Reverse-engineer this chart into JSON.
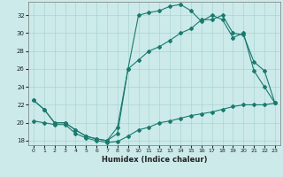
{
  "xlabel": "Humidex (Indice chaleur)",
  "xlim": [
    -0.5,
    23.5
  ],
  "ylim": [
    17.5,
    33.5
  ],
  "xticks": [
    0,
    1,
    2,
    3,
    4,
    5,
    6,
    7,
    8,
    9,
    10,
    11,
    12,
    13,
    14,
    15,
    16,
    17,
    18,
    19,
    20,
    21,
    22,
    23
  ],
  "yticks": [
    18,
    20,
    22,
    24,
    26,
    28,
    30,
    32
  ],
  "bg_color": "#cceaea",
  "line_color": "#1a7a6e",
  "grid_color": "#aad4d4",
  "line1_x": [
    0,
    1,
    2,
    3,
    4,
    5,
    6,
    7,
    8,
    9,
    10,
    11,
    12,
    13,
    14,
    15,
    16,
    17,
    18,
    19,
    20,
    21,
    22,
    23
  ],
  "line1_y": [
    20.2,
    20.0,
    19.8,
    19.8,
    18.8,
    18.3,
    18.0,
    17.8,
    17.9,
    18.5,
    19.2,
    19.5,
    20.0,
    20.2,
    20.5,
    20.8,
    21.0,
    21.2,
    21.5,
    21.8,
    22.0,
    22.0,
    22.0,
    22.2
  ],
  "line2_x": [
    0,
    1,
    2,
    3,
    4,
    5,
    6,
    7,
    8,
    9,
    10,
    11,
    12,
    13,
    14,
    15,
    16,
    17,
    18,
    19,
    20,
    21,
    22,
    23
  ],
  "line2_y": [
    22.5,
    21.5,
    20.0,
    20.0,
    19.2,
    18.5,
    18.2,
    18.0,
    19.5,
    26.0,
    27.0,
    28.0,
    28.5,
    29.2,
    30.0,
    30.5,
    31.5,
    31.5,
    32.0,
    30.0,
    29.8,
    26.8,
    25.8,
    22.2
  ],
  "line3_x": [
    0,
    1,
    2,
    3,
    4,
    5,
    6,
    7,
    8,
    9,
    10,
    11,
    12,
    13,
    14,
    15,
    16,
    17,
    18,
    19,
    20,
    21,
    22,
    23
  ],
  "line3_y": [
    22.5,
    21.5,
    20.0,
    20.0,
    19.2,
    18.5,
    18.2,
    18.0,
    18.8,
    26.0,
    32.0,
    32.3,
    32.5,
    33.0,
    33.2,
    32.5,
    31.3,
    32.0,
    31.5,
    29.5,
    30.0,
    25.8,
    24.0,
    22.2
  ]
}
